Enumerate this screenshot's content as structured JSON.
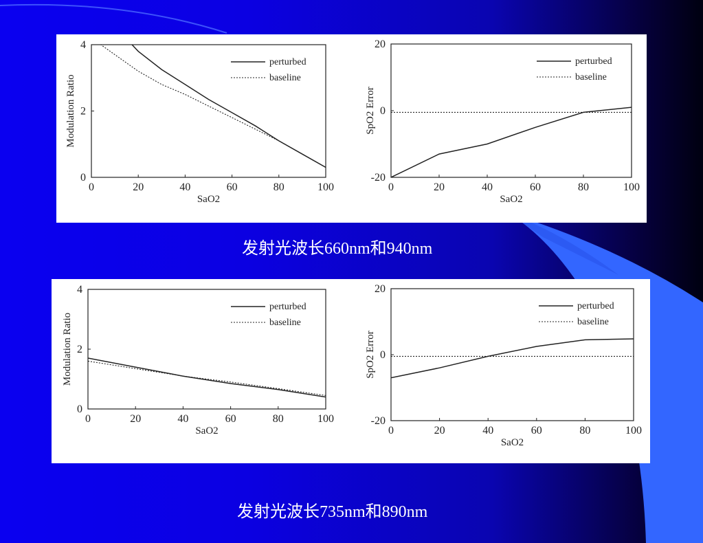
{
  "slide": {
    "caption_top": "发射光波长660nm和940nm",
    "caption_bottom": "发射光波长735nm和890nm"
  },
  "colors": {
    "background": "#0a00f0",
    "accent_shape": "#3366ff",
    "dark_edge": "#000010",
    "panel": "#ffffff",
    "ink": "#222222"
  },
  "chart_data": [
    {
      "type": "line",
      "xlabel": "SaO2",
      "ylabel": "Modulation Ratio",
      "xlim": [
        0,
        100
      ],
      "ylim": [
        0,
        4
      ],
      "xticks": [
        0,
        20,
        40,
        60,
        80,
        100
      ],
      "yticks": [
        0,
        2,
        4
      ],
      "legend_position": "top-right",
      "series": [
        {
          "name": "perturbed",
          "style": "solid",
          "x": [
            16,
            20,
            30,
            40,
            50,
            60,
            70,
            80,
            90,
            100
          ],
          "y": [
            4.1,
            3.8,
            3.25,
            2.8,
            2.35,
            1.95,
            1.55,
            1.1,
            0.7,
            0.3
          ]
        },
        {
          "name": "baseline",
          "style": "dotted",
          "x": [
            0,
            10,
            20,
            30,
            40,
            50,
            60,
            70,
            80,
            90,
            100
          ],
          "y": [
            4.2,
            3.7,
            3.2,
            2.8,
            2.5,
            2.15,
            1.8,
            1.45,
            1.1,
            0.7,
            0.3
          ]
        }
      ]
    },
    {
      "type": "line",
      "xlabel": "SaO2",
      "ylabel": "SpO2 Error",
      "xlim": [
        0,
        100
      ],
      "ylim": [
        -20,
        20
      ],
      "xticks": [
        0,
        20,
        40,
        60,
        80,
        100
      ],
      "yticks": [
        -20,
        0,
        20
      ],
      "legend_position": "top-right",
      "series": [
        {
          "name": "perturbed",
          "style": "solid",
          "x": [
            0,
            20,
            40,
            60,
            80,
            100
          ],
          "y": [
            -20,
            -13,
            -10,
            -5,
            -0.5,
            1
          ]
        },
        {
          "name": "baseline",
          "style": "dotted",
          "x": [
            0,
            100
          ],
          "y": [
            -0.5,
            -0.5
          ]
        }
      ]
    },
    {
      "type": "line",
      "xlabel": "SaO2",
      "ylabel": "Modulation Ratio",
      "xlim": [
        0,
        100
      ],
      "ylim": [
        0,
        4
      ],
      "xticks": [
        0,
        20,
        40,
        60,
        80,
        100
      ],
      "yticks": [
        0,
        2,
        4
      ],
      "legend_position": "top-right",
      "series": [
        {
          "name": "perturbed",
          "style": "solid",
          "x": [
            0,
            20,
            40,
            60,
            80,
            100
          ],
          "y": [
            1.7,
            1.4,
            1.1,
            0.85,
            0.65,
            0.4
          ]
        },
        {
          "name": "baseline",
          "style": "dotted",
          "x": [
            0,
            20,
            40,
            60,
            80,
            100
          ],
          "y": [
            1.6,
            1.35,
            1.1,
            0.9,
            0.68,
            0.45
          ]
        }
      ]
    },
    {
      "type": "line",
      "xlabel": "SaO2",
      "ylabel": "SpO2 Error",
      "xlim": [
        0,
        100
      ],
      "ylim": [
        -20,
        20
      ],
      "xticks": [
        0,
        20,
        40,
        60,
        80,
        100
      ],
      "yticks": [
        -20,
        0,
        20
      ],
      "legend_position": "top-right",
      "series": [
        {
          "name": "perturbed",
          "style": "solid",
          "x": [
            0,
            20,
            40,
            60,
            80,
            100
          ],
          "y": [
            -7,
            -4,
            -0.5,
            2.5,
            4.5,
            4.8
          ]
        },
        {
          "name": "baseline",
          "style": "dotted",
          "x": [
            0,
            100
          ],
          "y": [
            -0.5,
            -0.5
          ]
        }
      ]
    }
  ]
}
